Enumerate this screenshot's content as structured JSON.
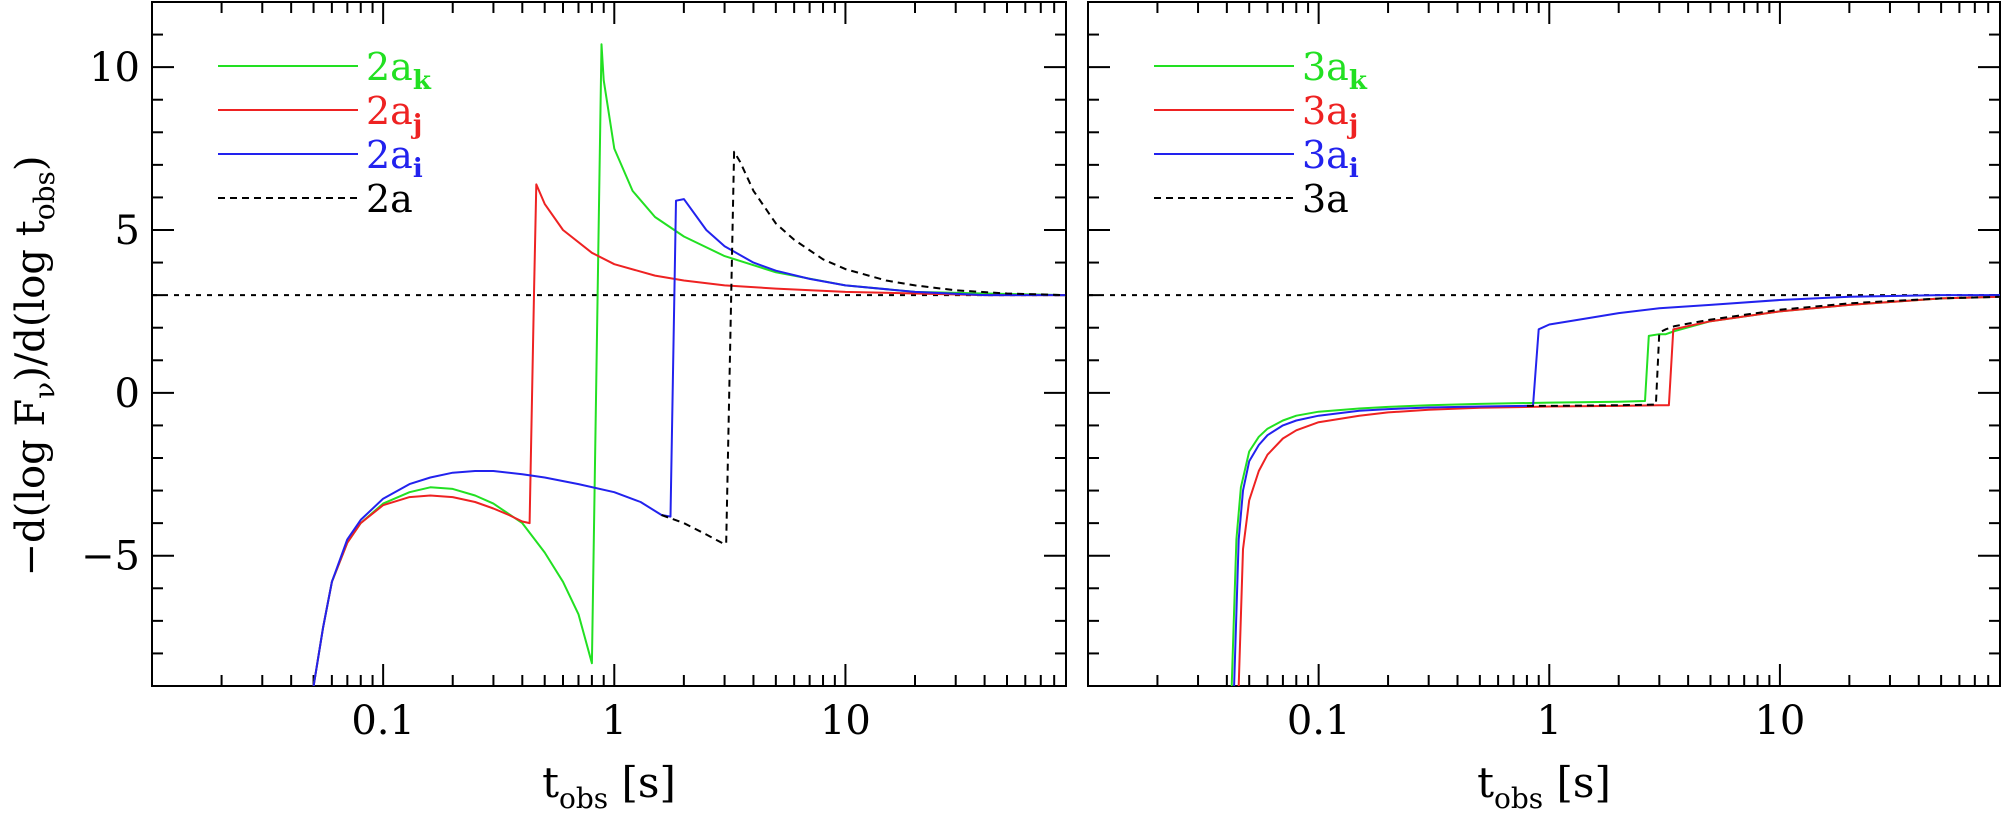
{
  "ylabel": {
    "pre": "−d(log F",
    "sub1": "ν",
    "mid": ")/d(log t",
    "sub2": "obs",
    "post": ")"
  },
  "chart_data": [
    {
      "type": "line",
      "panel": "left",
      "xscale": "log",
      "xlim": [
        0.01,
        90
      ],
      "ylim": [
        -9,
        12
      ],
      "xticks": [
        0.1,
        1,
        10
      ],
      "xtick_labels": [
        "0.1",
        "1",
        "10"
      ],
      "yticks": [
        -5,
        0,
        5,
        10
      ],
      "ytick_labels": [
        "−5",
        "0",
        "5",
        "10"
      ],
      "xlabel": {
        "main": "t",
        "sub": "obs",
        "unit": " [s]"
      },
      "legend_position": "top-left",
      "reference_line": {
        "y": 3,
        "style": "dotted",
        "color": "#000000"
      },
      "series": [
        {
          "name": "2a",
          "sub": "k",
          "color": "#22e022",
          "style": "solid",
          "x": [
            0.05,
            0.055,
            0.06,
            0.07,
            0.08,
            0.1,
            0.13,
            0.16,
            0.2,
            0.25,
            0.3,
            0.4,
            0.5,
            0.6,
            0.7,
            0.8,
            0.88,
            0.9,
            1.0,
            1.2,
            1.5,
            2,
            3,
            5,
            10,
            20,
            40,
            90
          ],
          "y": [
            -9,
            -7.2,
            -5.8,
            -4.6,
            -4.0,
            -3.4,
            -3.05,
            -2.9,
            -2.95,
            -3.15,
            -3.4,
            -4.0,
            -4.9,
            -5.8,
            -6.8,
            -8.3,
            10.7,
            9.6,
            7.5,
            6.2,
            5.4,
            4.8,
            4.2,
            3.7,
            3.3,
            3.1,
            3.05,
            3.0
          ]
        },
        {
          "name": "2a",
          "sub": "j",
          "color": "#ee2222",
          "style": "solid",
          "x": [
            0.05,
            0.055,
            0.06,
            0.07,
            0.08,
            0.1,
            0.13,
            0.16,
            0.2,
            0.25,
            0.3,
            0.35,
            0.4,
            0.43,
            0.45,
            0.46,
            0.5,
            0.6,
            0.8,
            1.0,
            1.5,
            2,
            3,
            5,
            10,
            20,
            40,
            90
          ],
          "y": [
            -9,
            -7.2,
            -5.8,
            -4.6,
            -4.0,
            -3.45,
            -3.2,
            -3.15,
            -3.2,
            -3.35,
            -3.55,
            -3.75,
            -3.95,
            -4.0,
            3.2,
            6.4,
            5.8,
            5.0,
            4.3,
            3.95,
            3.6,
            3.45,
            3.3,
            3.2,
            3.1,
            3.05,
            3.0,
            3.0
          ]
        },
        {
          "name": "2a",
          "sub": "i",
          "color": "#2222ee",
          "style": "solid",
          "x": [
            0.05,
            0.055,
            0.06,
            0.07,
            0.08,
            0.1,
            0.13,
            0.16,
            0.2,
            0.25,
            0.3,
            0.4,
            0.5,
            0.7,
            1.0,
            1.3,
            1.6,
            1.75,
            1.85,
            2.0,
            2.5,
            3,
            4,
            5,
            7,
            10,
            20,
            40,
            90
          ],
          "y": [
            -9,
            -7.2,
            -5.8,
            -4.5,
            -3.9,
            -3.25,
            -2.8,
            -2.6,
            -2.45,
            -2.4,
            -2.4,
            -2.5,
            -2.6,
            -2.8,
            -3.05,
            -3.35,
            -3.75,
            -3.8,
            5.9,
            5.95,
            5.0,
            4.5,
            4.0,
            3.75,
            3.5,
            3.3,
            3.1,
            3.0,
            3.0
          ]
        },
        {
          "name": "2a",
          "sub": "",
          "color": "#000000",
          "style": "dashed",
          "x": [
            1.6,
            2.0,
            2.5,
            3.0,
            3.05,
            3.3,
            3.5,
            4,
            5,
            6,
            8,
            10,
            15,
            20,
            30,
            50,
            90
          ],
          "y": [
            -3.75,
            -4.0,
            -4.35,
            -4.65,
            -4.6,
            7.4,
            7.1,
            6.2,
            5.2,
            4.7,
            4.1,
            3.8,
            3.45,
            3.3,
            3.15,
            3.05,
            3.0
          ]
        }
      ]
    },
    {
      "type": "line",
      "panel": "right",
      "xscale": "log",
      "xlim": [
        0.01,
        90
      ],
      "ylim": [
        -9,
        12
      ],
      "xticks": [
        0.1,
        1,
        10
      ],
      "xtick_labels": [
        "0.1",
        "1",
        "10"
      ],
      "yticks": [
        -5,
        0,
        5,
        10
      ],
      "ytick_labels": [
        "",
        "",
        "",
        ""
      ],
      "xlabel": {
        "main": "t",
        "sub": "obs",
        "unit": " [s]"
      },
      "legend_position": "top-left",
      "reference_line": {
        "y": 3,
        "style": "dotted",
        "color": "#000000"
      },
      "series": [
        {
          "name": "3a",
          "sub": "k",
          "color": "#22e022",
          "style": "solid",
          "x": [
            0.042,
            0.044,
            0.046,
            0.05,
            0.055,
            0.06,
            0.07,
            0.08,
            0.1,
            0.15,
            0.2,
            0.3,
            0.5,
            1,
            2,
            2.6,
            2.7,
            3.0,
            3.2,
            3.5,
            5,
            10,
            20,
            50,
            90
          ],
          "y": [
            -9,
            -4.5,
            -2.9,
            -1.8,
            -1.35,
            -1.1,
            -0.85,
            -0.7,
            -0.58,
            -0.48,
            -0.43,
            -0.38,
            -0.34,
            -0.3,
            -0.27,
            -0.25,
            1.75,
            1.8,
            1.8,
            1.9,
            2.2,
            2.5,
            2.7,
            2.9,
            2.95
          ]
        },
        {
          "name": "3a",
          "sub": "j",
          "color": "#ee2222",
          "style": "solid",
          "x": [
            0.045,
            0.047,
            0.05,
            0.055,
            0.06,
            0.07,
            0.08,
            0.1,
            0.15,
            0.2,
            0.3,
            0.5,
            1,
            2,
            3.0,
            3.3,
            3.45,
            4,
            5,
            10,
            20,
            50,
            90
          ],
          "y": [
            -9,
            -4.8,
            -3.3,
            -2.4,
            -1.9,
            -1.4,
            -1.15,
            -0.9,
            -0.7,
            -0.6,
            -0.52,
            -0.46,
            -0.42,
            -0.4,
            -0.38,
            -0.38,
            1.95,
            2.05,
            2.2,
            2.5,
            2.7,
            2.9,
            2.95
          ]
        },
        {
          "name": "3a",
          "sub": "i",
          "color": "#2222ee",
          "style": "solid",
          "x": [
            0.043,
            0.045,
            0.047,
            0.05,
            0.055,
            0.06,
            0.07,
            0.08,
            0.1,
            0.15,
            0.2,
            0.3,
            0.5,
            0.8,
            0.85,
            0.9,
            1.0,
            1.5,
            2,
            3,
            5,
            10,
            20,
            50,
            90
          ],
          "y": [
            -9,
            -4.5,
            -3.0,
            -2.1,
            -1.6,
            -1.3,
            -1.0,
            -0.85,
            -0.7,
            -0.55,
            -0.5,
            -0.45,
            -0.42,
            -0.4,
            -0.4,
            1.95,
            2.1,
            2.3,
            2.45,
            2.6,
            2.7,
            2.85,
            2.95,
            3.0,
            3.0
          ]
        },
        {
          "name": "3a",
          "sub": "",
          "color": "#000000",
          "style": "dashed",
          "x": [
            0.8,
            1,
            2,
            2.9,
            3.0,
            3.2,
            3.5,
            5,
            10,
            20,
            50,
            90
          ],
          "y": [
            -0.4,
            -0.4,
            -0.38,
            -0.36,
            1.85,
            1.95,
            2.05,
            2.25,
            2.55,
            2.75,
            2.9,
            2.95
          ]
        }
      ]
    }
  ]
}
